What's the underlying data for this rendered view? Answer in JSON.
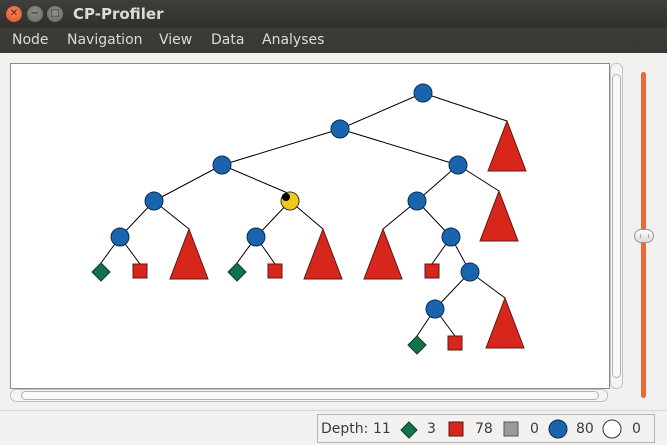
{
  "window": {
    "title": "CP-Profiler",
    "close_glyph": "✕",
    "minimize_glyph": "−",
    "maximize_glyph": "□"
  },
  "menu": {
    "items": [
      {
        "label": "Node"
      },
      {
        "label": "Navigation"
      },
      {
        "label": "View"
      },
      {
        "label": "Data"
      },
      {
        "label": "Analyses"
      }
    ]
  },
  "statusbar": {
    "depth_label": "Depth:",
    "depth_value": "11",
    "solved_count": "3",
    "failed_count": "78",
    "skipped_count": "0",
    "branch_count": "80",
    "open_count": "0"
  },
  "colors": {
    "branch": "#1a63ad",
    "failed": "#d9261d",
    "solved": "#12734a",
    "skipped": "#9a9a9a",
    "selected": "#f2c81b",
    "slider": "#e86a36"
  },
  "tree": {
    "edges": [
      [
        "root",
        "n1"
      ],
      [
        "root",
        "tri_root"
      ],
      [
        "n1",
        "n2"
      ],
      [
        "n1",
        "n3"
      ],
      [
        "n2",
        "n4"
      ],
      [
        "n2",
        "sel"
      ],
      [
        "n4",
        "n5"
      ],
      [
        "n4",
        "tri_a"
      ],
      [
        "n5",
        "d1"
      ],
      [
        "n5",
        "s1"
      ],
      [
        "sel",
        "n6"
      ],
      [
        "sel",
        "tri_b"
      ],
      [
        "n6",
        "d2"
      ],
      [
        "n6",
        "s2"
      ],
      [
        "n3",
        "n7"
      ],
      [
        "n3",
        "tri_c"
      ],
      [
        "n7",
        "tri_d"
      ],
      [
        "n7",
        "n8"
      ],
      [
        "n8",
        "s3"
      ],
      [
        "n8",
        "n9"
      ],
      [
        "n9",
        "n10"
      ],
      [
        "n9",
        "tri_e"
      ],
      [
        "n10",
        "d3"
      ],
      [
        "n10",
        "s4"
      ]
    ],
    "nodes": [
      {
        "id": "root",
        "kind": "branch"
      },
      {
        "id": "n1",
        "kind": "branch"
      },
      {
        "id": "n2",
        "kind": "branch"
      },
      {
        "id": "n3",
        "kind": "branch"
      },
      {
        "id": "n4",
        "kind": "branch"
      },
      {
        "id": "sel",
        "kind": "selected"
      },
      {
        "id": "n5",
        "kind": "branch"
      },
      {
        "id": "n6",
        "kind": "branch"
      },
      {
        "id": "n7",
        "kind": "branch"
      },
      {
        "id": "n8",
        "kind": "branch"
      },
      {
        "id": "n9",
        "kind": "branch"
      },
      {
        "id": "n10",
        "kind": "branch"
      },
      {
        "id": "d1",
        "kind": "solved"
      },
      {
        "id": "d2",
        "kind": "solved"
      },
      {
        "id": "d3",
        "kind": "solved"
      },
      {
        "id": "s1",
        "kind": "failed"
      },
      {
        "id": "s2",
        "kind": "failed"
      },
      {
        "id": "s3",
        "kind": "failed"
      },
      {
        "id": "s4",
        "kind": "failed"
      },
      {
        "id": "tri_root",
        "kind": "failed-subtree"
      },
      {
        "id": "tri_a",
        "kind": "failed-subtree"
      },
      {
        "id": "tri_b",
        "kind": "failed-subtree"
      },
      {
        "id": "tri_c",
        "kind": "failed-subtree"
      },
      {
        "id": "tri_d",
        "kind": "failed-subtree"
      },
      {
        "id": "tri_e",
        "kind": "failed-subtree"
      }
    ]
  }
}
